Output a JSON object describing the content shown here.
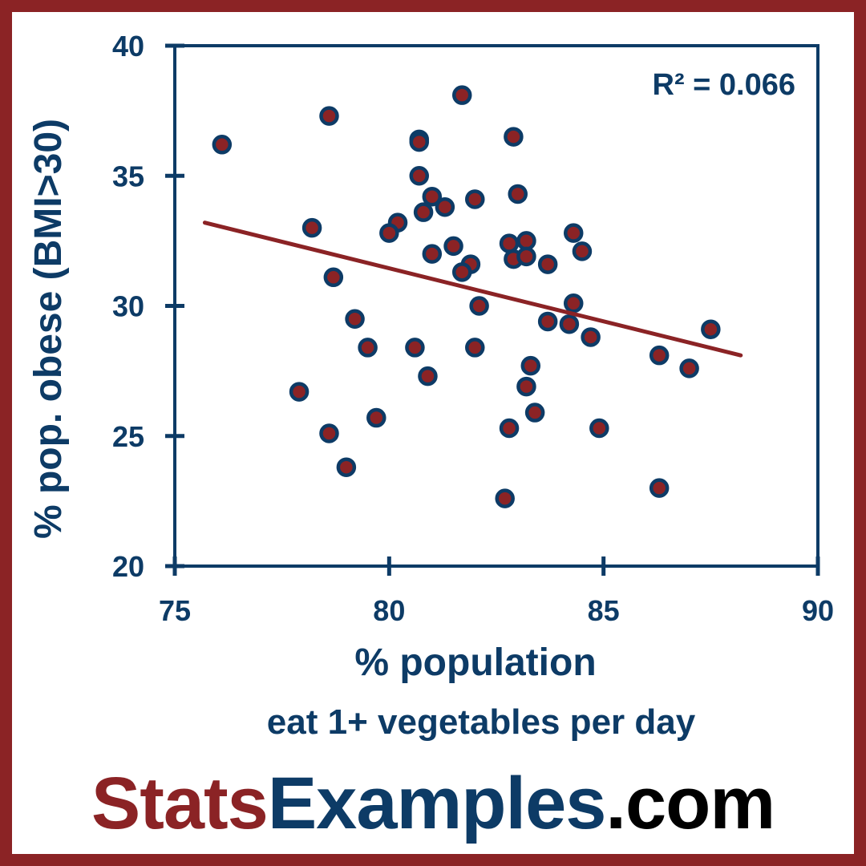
{
  "branding": {
    "part1": "Stats",
    "part2": "Examples",
    "part3": ".com"
  },
  "colors": {
    "frame": "#8b2325",
    "axis": "#0d3b66",
    "marker_fill": "#8b2325",
    "marker_edge": "#0d3b66",
    "trendline": "#8b2325",
    "brand_stats": "#8b2325",
    "brand_examples": "#0d3b66",
    "brand_com": "#000000"
  },
  "chart_data": {
    "type": "scatter",
    "title": "",
    "xlabel": [
      "% population",
      "eat 1+ vegetables per day"
    ],
    "ylabel": "% pop. obese (BMI>30)",
    "xlim": [
      75,
      90
    ],
    "ylim": [
      20,
      40
    ],
    "x_ticks": [
      75,
      80,
      85,
      90
    ],
    "y_ticks": [
      20,
      25,
      30,
      35,
      40
    ],
    "grid": false,
    "annotation": "R² = 0.066",
    "trendline": {
      "x": [
        75.7,
        88.2
      ],
      "y": [
        33.2,
        28.1
      ]
    },
    "points": [
      [
        76.1,
        36.2
      ],
      [
        78.6,
        37.3
      ],
      [
        81.7,
        38.1
      ],
      [
        80.7,
        36.4
      ],
      [
        80.7,
        36.3
      ],
      [
        82.9,
        36.5
      ],
      [
        80.7,
        35.0
      ],
      [
        81.0,
        34.2
      ],
      [
        82.0,
        34.1
      ],
      [
        83.0,
        34.3
      ],
      [
        81.3,
        33.8
      ],
      [
        80.8,
        33.6
      ],
      [
        80.2,
        33.2
      ],
      [
        80.0,
        32.8
      ],
      [
        78.2,
        33.0
      ],
      [
        81.5,
        32.3
      ],
      [
        81.0,
        32.0
      ],
      [
        82.8,
        32.4
      ],
      [
        83.2,
        32.5
      ],
      [
        82.9,
        31.8
      ],
      [
        83.2,
        31.9
      ],
      [
        84.3,
        32.8
      ],
      [
        84.5,
        32.1
      ],
      [
        81.9,
        31.6
      ],
      [
        81.7,
        31.3
      ],
      [
        83.7,
        31.6
      ],
      [
        78.7,
        31.1
      ],
      [
        82.1,
        30.0
      ],
      [
        84.3,
        30.1
      ],
      [
        79.2,
        29.5
      ],
      [
        83.7,
        29.4
      ],
      [
        84.2,
        29.3
      ],
      [
        87.5,
        29.1
      ],
      [
        84.7,
        28.8
      ],
      [
        79.5,
        28.4
      ],
      [
        80.6,
        28.4
      ],
      [
        82.0,
        28.4
      ],
      [
        86.3,
        28.1
      ],
      [
        87.0,
        27.6
      ],
      [
        83.3,
        27.7
      ],
      [
        80.9,
        27.3
      ],
      [
        83.2,
        26.9
      ],
      [
        77.9,
        26.7
      ],
      [
        83.4,
        25.9
      ],
      [
        79.7,
        25.7
      ],
      [
        82.8,
        25.3
      ],
      [
        84.9,
        25.3
      ],
      [
        78.6,
        25.1
      ],
      [
        79.0,
        23.8
      ],
      [
        86.3,
        23.0
      ],
      [
        82.7,
        22.6
      ]
    ]
  }
}
